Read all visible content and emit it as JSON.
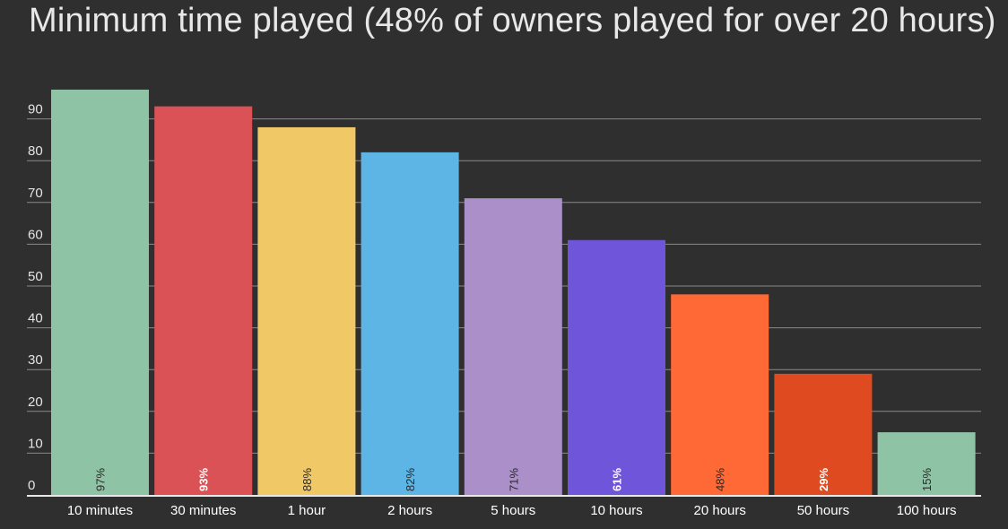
{
  "chart_data": {
    "type": "bar",
    "title": "Minimum time played (48% of owners played for over 20 hours)",
    "categories": [
      "10 minutes",
      "30 minutes",
      "1 hour",
      "2 hours",
      "5 hours",
      "10 hours",
      "20 hours",
      "50 hours",
      "100 hours"
    ],
    "values": [
      97,
      93,
      88,
      82,
      71,
      61,
      48,
      29,
      15
    ],
    "data_labels": [
      "97%",
      "93%",
      "88%",
      "82%",
      "71%",
      "61%",
      "48%",
      "29%",
      "15%"
    ],
    "colors": [
      "#8fc3a6",
      "#da5256",
      "#f0c966",
      "#5cb5e4",
      "#ab8fc8",
      "#6e55da",
      "#fe6935",
      "#df4a21",
      "#8fc3a6"
    ],
    "label_colors": [
      "#2a2a2a",
      "#ffffff",
      "#2a2a2a",
      "#2a2a2a",
      "#2a2a2a",
      "#ffffff",
      "#2a2a2a",
      "#ffffff",
      "#2a2a2a"
    ],
    "label_bold": [
      false,
      true,
      false,
      false,
      false,
      true,
      false,
      true,
      false
    ],
    "yticks": [
      0,
      10,
      20,
      30,
      40,
      50,
      60,
      70,
      80,
      90
    ],
    "ylim": [
      0,
      100
    ],
    "grid": true,
    "legend": "none",
    "xlabel": "",
    "ylabel": ""
  }
}
